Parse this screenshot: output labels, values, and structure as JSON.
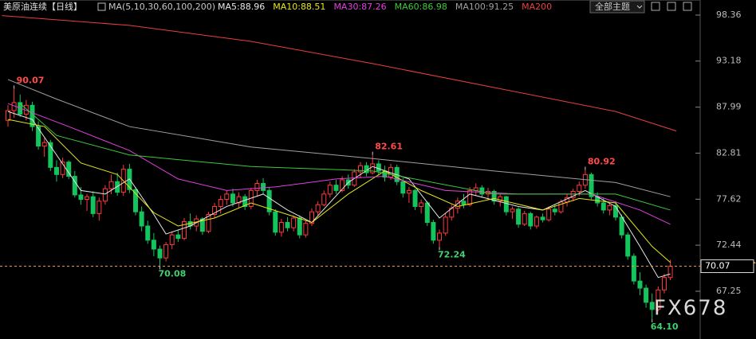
{
  "chart_data": {
    "type": "candlestick",
    "title": "美原油连续【日线】",
    "indicator": "MA(5,10,30,60,100,200)",
    "button": "全部主题",
    "watermark": "FX678",
    "ylim": [
      61.87,
      100.06
    ],
    "yticks": [
      98.36,
      93.18,
      87.99,
      82.81,
      77.62,
      72.44,
      67.25
    ],
    "last_price": 70.07,
    "up_color": "#ff3b3b",
    "down_color": "#14c45c",
    "ohlc": [
      [
        86.5,
        88.2,
        85.8,
        87.6
      ],
      [
        87.6,
        90.07,
        86.8,
        88.5
      ],
      [
        88.5,
        89.4,
        86.9,
        87.2
      ],
      [
        87.2,
        88.8,
        86.5,
        88.2
      ],
      [
        88.2,
        88.6,
        85.3,
        85.8
      ],
      [
        85.8,
        86.4,
        83.2,
        83.6
      ],
      [
        83.6,
        84.5,
        82.4,
        84.0
      ],
      [
        84.0,
        84.3,
        80.8,
        81.2
      ],
      [
        81.2,
        82.0,
        79.6,
        80.4
      ],
      [
        80.4,
        82.3,
        80.0,
        81.8
      ],
      [
        81.8,
        82.0,
        79.9,
        80.2
      ],
      [
        80.2,
        80.8,
        77.8,
        78.1
      ],
      [
        78.1,
        79.0,
        77.0,
        77.6
      ],
      [
        77.6,
        78.2,
        76.3,
        77.9
      ],
      [
        77.9,
        78.5,
        75.6,
        76.0
      ],
      [
        76.0,
        77.8,
        75.2,
        77.4
      ],
      [
        77.4,
        79.2,
        77.0,
        78.8
      ],
      [
        78.8,
        80.4,
        78.2,
        79.6
      ],
      [
        79.6,
        80.6,
        78.0,
        78.4
      ],
      [
        78.4,
        81.5,
        78.0,
        81.0
      ],
      [
        81.0,
        81.6,
        78.3,
        78.7
      ],
      [
        78.7,
        79.0,
        75.8,
        76.2
      ],
      [
        76.2,
        76.8,
        74.0,
        74.6
      ],
      [
        74.6,
        75.2,
        72.6,
        73.0
      ],
      [
        73.0,
        73.8,
        71.2,
        72.0
      ],
      [
        72.0,
        72.4,
        70.08,
        71.0
      ],
      [
        71.0,
        72.8,
        70.6,
        72.5
      ],
      [
        72.5,
        74.0,
        72.0,
        73.6
      ],
      [
        73.6,
        74.2,
        72.8,
        73.2
      ],
      [
        73.2,
        75.5,
        73.0,
        75.1
      ],
      [
        75.1,
        76.0,
        74.2,
        74.6
      ],
      [
        74.6,
        75.8,
        74.0,
        75.4
      ],
      [
        75.4,
        75.6,
        73.6,
        74.0
      ],
      [
        74.0,
        76.2,
        73.8,
        75.9
      ],
      [
        75.9,
        77.2,
        75.5,
        76.8
      ],
      [
        76.8,
        78.0,
        76.0,
        77.6
      ],
      [
        77.6,
        78.6,
        77.0,
        78.2
      ],
      [
        78.2,
        78.8,
        76.8,
        77.2
      ],
      [
        77.2,
        78.4,
        76.6,
        77.9
      ],
      [
        77.9,
        78.2,
        76.4,
        76.8
      ],
      [
        76.8,
        78.9,
        76.5,
        78.6
      ],
      [
        78.6,
        79.8,
        78.0,
        79.4
      ],
      [
        79.4,
        80.0,
        78.2,
        78.6
      ],
      [
        78.6,
        78.9,
        75.8,
        76.2
      ],
      [
        76.2,
        76.5,
        73.5,
        73.9
      ],
      [
        73.9,
        75.4,
        73.4,
        75.0
      ],
      [
        75.0,
        75.6,
        74.0,
        74.4
      ],
      [
        74.4,
        75.8,
        74.0,
        75.5
      ],
      [
        75.5,
        75.8,
        73.2,
        73.6
      ],
      [
        73.6,
        75.2,
        73.3,
        74.9
      ],
      [
        74.9,
        76.6,
        74.6,
        76.2
      ],
      [
        76.2,
        77.4,
        75.8,
        77.0
      ],
      [
        77.0,
        78.6,
        76.8,
        78.2
      ],
      [
        78.2,
        79.6,
        77.8,
        79.2
      ],
      [
        79.2,
        79.8,
        78.2,
        78.6
      ],
      [
        78.6,
        80.2,
        78.4,
        79.8
      ],
      [
        79.8,
        80.4,
        78.8,
        79.2
      ],
      [
        79.2,
        81.0,
        79.0,
        80.7
      ],
      [
        80.7,
        81.8,
        80.0,
        81.4
      ],
      [
        81.4,
        81.8,
        80.2,
        80.6
      ],
      [
        80.6,
        82.61,
        80.4,
        81.6
      ],
      [
        81.6,
        82.0,
        80.3,
        80.8
      ],
      [
        80.8,
        81.4,
        79.6,
        80.1
      ],
      [
        80.1,
        81.6,
        79.8,
        81.2
      ],
      [
        81.2,
        81.5,
        79.2,
        79.6
      ],
      [
        79.6,
        80.0,
        77.8,
        78.3
      ],
      [
        78.3,
        79.0,
        77.2,
        78.6
      ],
      [
        78.6,
        78.8,
        76.4,
        76.8
      ],
      [
        76.8,
        77.6,
        76.0,
        77.2
      ],
      [
        77.2,
        77.4,
        74.6,
        75.0
      ],
      [
        75.0,
        75.3,
        72.6,
        73.0
      ],
      [
        73.0,
        74.2,
        72.24,
        73.8
      ],
      [
        73.8,
        76.0,
        73.5,
        75.6
      ],
      [
        75.6,
        77.0,
        75.2,
        76.6
      ],
      [
        76.6,
        77.8,
        76.0,
        77.4
      ],
      [
        77.4,
        78.2,
        76.6,
        77.0
      ],
      [
        77.0,
        79.0,
        76.8,
        78.6
      ],
      [
        78.6,
        79.4,
        78.0,
        78.9
      ],
      [
        78.9,
        79.2,
        77.8,
        78.2
      ],
      [
        78.2,
        78.9,
        77.6,
        78.5
      ],
      [
        78.5,
        78.7,
        77.0,
        77.4
      ],
      [
        77.4,
        78.2,
        76.8,
        77.9
      ],
      [
        77.9,
        78.0,
        75.8,
        76.2
      ],
      [
        76.2,
        76.8,
        75.4,
        76.5
      ],
      [
        76.5,
        76.7,
        74.4,
        74.8
      ],
      [
        74.8,
        76.3,
        74.6,
        76.0
      ],
      [
        76.0,
        76.2,
        74.2,
        74.6
      ],
      [
        74.6,
        75.8,
        74.3,
        75.6
      ],
      [
        75.6,
        76.0,
        75.0,
        75.3
      ],
      [
        75.3,
        76.8,
        75.1,
        76.5
      ],
      [
        76.5,
        77.0,
        75.8,
        76.2
      ],
      [
        76.2,
        77.6,
        76.0,
        77.3
      ],
      [
        77.3,
        78.2,
        76.8,
        77.8
      ],
      [
        77.8,
        78.8,
        77.4,
        78.5
      ],
      [
        78.5,
        79.6,
        78.0,
        79.2
      ],
      [
        79.2,
        80.92,
        78.8,
        80.4
      ],
      [
        80.4,
        80.6,
        77.6,
        77.9
      ],
      [
        77.9,
        78.4,
        76.8,
        77.2
      ],
      [
        77.2,
        77.8,
        76.0,
        76.4
      ],
      [
        76.4,
        77.2,
        75.8,
        76.9
      ],
      [
        76.9,
        77.4,
        75.2,
        75.6
      ],
      [
        75.6,
        75.9,
        73.2,
        73.6
      ],
      [
        73.6,
        73.9,
        70.8,
        71.2
      ],
      [
        71.2,
        71.5,
        68.0,
        68.4
      ],
      [
        68.4,
        69.4,
        66.8,
        67.6
      ],
      [
        67.6,
        68.0,
        65.4,
        66.0
      ],
      [
        66.0,
        67.0,
        64.1,
        65.2
      ],
      [
        65.2,
        67.8,
        65.0,
        67.4
      ],
      [
        67.4,
        69.2,
        67.0,
        68.8
      ],
      [
        68.8,
        70.8,
        68.5,
        70.07
      ]
    ],
    "series": [
      {
        "name": "MA5:88.96",
        "color": "#e8e8e8",
        "x": [
          0,
          4,
          8,
          12,
          16,
          20,
          24,
          26,
          30,
          36,
          42,
          46,
          50,
          56,
          60,
          66,
          71,
          76,
          84,
          88,
          95,
          100,
          104,
          107,
          109
        ],
        "values": [
          87.5,
          86.6,
          82.6,
          78.6,
          78.2,
          79.9,
          75.9,
          73.7,
          74.6,
          76.8,
          78.2,
          76.4,
          75.0,
          79.5,
          81.3,
          79.9,
          75.5,
          78.2,
          76.8,
          76.4,
          78.6,
          76.8,
          72.3,
          68.8,
          69.2
        ]
      },
      {
        "name": "MA10:88.51",
        "color": "#e6e619",
        "x": [
          0,
          6,
          12,
          18,
          24,
          28,
          34,
          40,
          46,
          50,
          56,
          62,
          68,
          74,
          80,
          88,
          94,
          100,
          106,
          109
        ],
        "values": [
          86.6,
          85.8,
          81.7,
          80.4,
          76.1,
          74.6,
          75.5,
          77.2,
          75.9,
          75.0,
          78.2,
          80.8,
          78.6,
          76.8,
          77.7,
          76.4,
          77.7,
          77.2,
          72.3,
          70.5
        ]
      },
      {
        "name": "MA30:87.26",
        "color": "#e040e0",
        "x": [
          0,
          10,
          20,
          28,
          36,
          44,
          54,
          62,
          72,
          84,
          96,
          104,
          109
        ],
        "values": [
          88.4,
          85.8,
          83.1,
          79.9,
          78.6,
          79.0,
          79.9,
          80.2,
          78.6,
          78.2,
          78.2,
          76.4,
          74.8
        ]
      },
      {
        "name": "MA60:86.98",
        "color": "#3cc83c",
        "x": [
          2,
          8,
          20,
          40,
          60,
          80,
          100,
          109
        ],
        "values": [
          88.4,
          84.8,
          82.6,
          81.3,
          80.8,
          78.2,
          78.2,
          76.4
        ]
      },
      {
        "name": "MA100:91.25",
        "color": "#a0a0a0",
        "x": [
          0,
          8,
          20,
          40,
          60,
          80,
          100,
          109
        ],
        "values": [
          91.1,
          88.9,
          85.8,
          83.5,
          82.2,
          80.8,
          79.5,
          77.9
        ]
      },
      {
        "name": "MA200",
        "color": "#e84040",
        "x": [
          -1,
          20,
          40,
          60,
          80,
          100,
          110
        ],
        "values": [
          98.3,
          97.2,
          95.4,
          92.9,
          90.2,
          87.5,
          85.3
        ]
      }
    ],
    "annotations": [
      {
        "label": "90.07",
        "x": 1,
        "value": 90.07,
        "position": "above"
      },
      {
        "label": "70.08",
        "x": 25,
        "value": 70.08,
        "position": "below"
      },
      {
        "label": "82.61",
        "x": 60,
        "value": 82.61,
        "position": "above"
      },
      {
        "label": "72.24",
        "x": 71,
        "value": 72.24,
        "position": "below"
      },
      {
        "label": "80.92",
        "x": 95,
        "value": 80.92,
        "position": "above"
      },
      {
        "label": "64.10",
        "x": 106,
        "value": 64.1,
        "position": "below"
      }
    ]
  }
}
